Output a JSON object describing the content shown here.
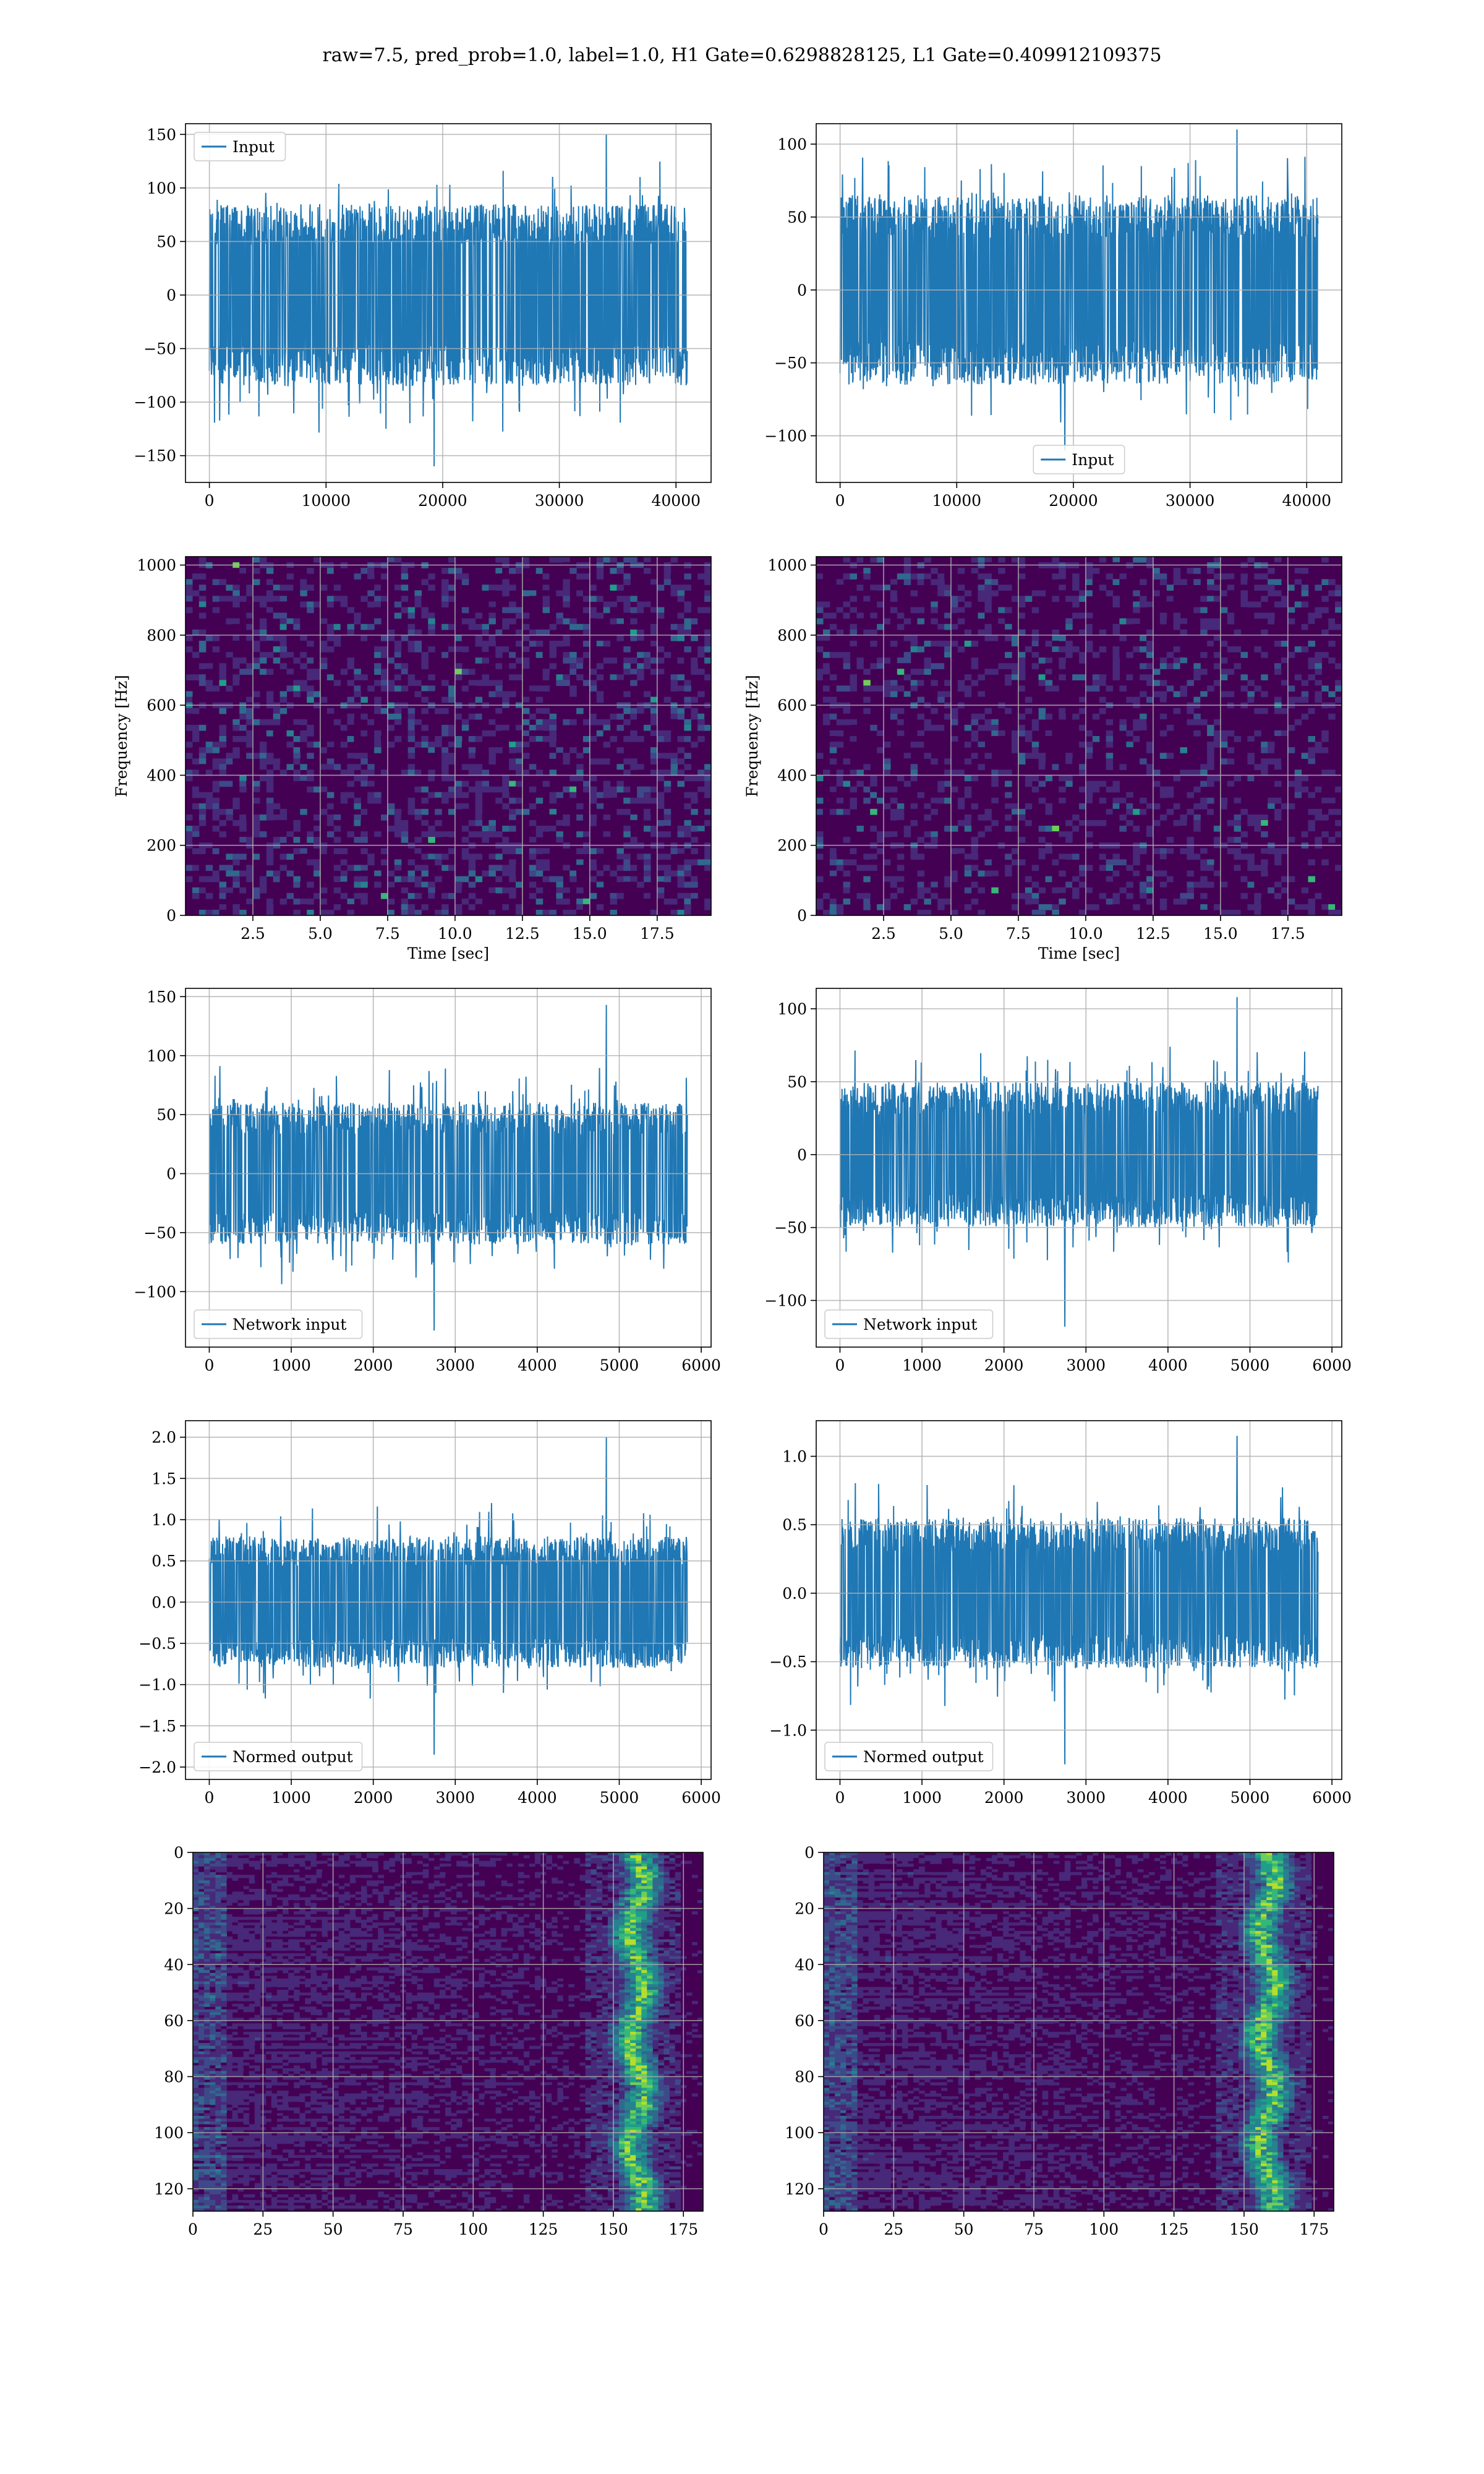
{
  "figure": {
    "suptitle": "raw=7.5, pred_prob=1.0, label=1.0, H1 Gate=0.6298828125, L1 Gate=0.409912109375"
  },
  "colors": {
    "line": "#1f77b4",
    "grid": "#b0b0b0",
    "viridis": [
      "#440154",
      "#482878",
      "#3e4989",
      "#31688e",
      "#26828e",
      "#1f9e89",
      "#35b779",
      "#6ece58",
      "#b5de2b",
      "#fde725"
    ]
  },
  "chart_data": [
    {
      "id": "h1_input",
      "type": "line",
      "series": [
        {
          "name": "Input",
          "amplitude_typical": 85,
          "peaks": [
            150,
            -160
          ]
        }
      ],
      "x": {
        "min": 0,
        "max": 40960
      },
      "xlim": [
        -2048,
        43008
      ],
      "ylim": [
        -175,
        160
      ],
      "xticks": [
        0,
        10000,
        20000,
        30000,
        40000
      ],
      "xtick_labels": [
        "0",
        "10000",
        "20000",
        "30000",
        "40000"
      ],
      "yticks": [
        -150,
        -100,
        -50,
        0,
        50,
        100,
        150
      ],
      "ytick_labels": [
        "−150",
        "−100",
        "−50",
        "0",
        "50",
        "100",
        "150"
      ],
      "legend": "upper left",
      "grid": true
    },
    {
      "id": "l1_input",
      "type": "line",
      "series": [
        {
          "name": "Input",
          "amplitude_typical": 65,
          "peaks": [
            110,
            -110
          ]
        }
      ],
      "x": {
        "min": 0,
        "max": 40960
      },
      "xlim": [
        -2048,
        43008
      ],
      "ylim": [
        -132,
        114
      ],
      "xticks": [
        0,
        10000,
        20000,
        30000,
        40000
      ],
      "xtick_labels": [
        "0",
        "10000",
        "20000",
        "30000",
        "40000"
      ],
      "yticks": [
        -100,
        -50,
        0,
        50,
        100
      ],
      "ytick_labels": [
        "−100",
        "−50",
        "0",
        "50",
        "100"
      ],
      "legend": "lower center",
      "grid": true
    },
    {
      "id": "h1_spectrogram",
      "type": "heatmap",
      "xlabel": "Time [sec]",
      "ylabel": "Frequency [Hz]",
      "xlim": [
        0,
        19.5
      ],
      "ylim": [
        0,
        1024
      ],
      "xticks": [
        2.5,
        5.0,
        7.5,
        10.0,
        12.5,
        15.0,
        17.5
      ],
      "xtick_labels": [
        "2.5",
        "5.0",
        "7.5",
        "10.0",
        "12.5",
        "15.0",
        "17.5"
      ],
      "yticks": [
        0,
        200,
        400,
        600,
        800,
        1000
      ],
      "ytick_labels": [
        "0",
        "200",
        "400",
        "600",
        "800",
        "1000"
      ],
      "colormap": "viridis",
      "grid": true
    },
    {
      "id": "l1_spectrogram",
      "type": "heatmap",
      "xlabel": "Time [sec]",
      "ylabel": "Frequency [Hz]",
      "xlim": [
        0,
        19.5
      ],
      "ylim": [
        0,
        1024
      ],
      "xticks": [
        2.5,
        5.0,
        7.5,
        10.0,
        12.5,
        15.0,
        17.5
      ],
      "xtick_labels": [
        "2.5",
        "5.0",
        "7.5",
        "10.0",
        "12.5",
        "15.0",
        "17.5"
      ],
      "yticks": [
        0,
        200,
        400,
        600,
        800,
        1000
      ],
      "ytick_labels": [
        "0",
        "200",
        "400",
        "600",
        "800",
        "1000"
      ],
      "colormap": "viridis",
      "grid": true
    },
    {
      "id": "h1_network_input",
      "type": "line",
      "series": [
        {
          "name": "Network input",
          "amplitude_typical": 60,
          "peaks": [
            143,
            -133
          ]
        }
      ],
      "x": {
        "min": 0,
        "max": 5830
      },
      "xlim": [
        -290,
        6120
      ],
      "ylim": [
        -147,
        157
      ],
      "xticks": [
        0,
        1000,
        2000,
        3000,
        4000,
        5000,
        6000
      ],
      "xtick_labels": [
        "0",
        "1000",
        "2000",
        "3000",
        "4000",
        "5000",
        "6000"
      ],
      "yticks": [
        -100,
        -50,
        0,
        50,
        100,
        150
      ],
      "ytick_labels": [
        "−100",
        "−50",
        "0",
        "50",
        "100",
        "150"
      ],
      "legend": "lower left",
      "grid": true
    },
    {
      "id": "l1_network_input",
      "type": "line",
      "series": [
        {
          "name": "Network input",
          "amplitude_typical": 50,
          "peaks": [
            108,
            -118
          ]
        }
      ],
      "x": {
        "min": 0,
        "max": 5830
      },
      "xlim": [
        -290,
        6120
      ],
      "ylim": [
        -132,
        114
      ],
      "xticks": [
        0,
        1000,
        2000,
        3000,
        4000,
        5000,
        6000
      ],
      "xtick_labels": [
        "0",
        "1000",
        "2000",
        "3000",
        "4000",
        "5000",
        "6000"
      ],
      "yticks": [
        -100,
        -50,
        0,
        50,
        100
      ],
      "ytick_labels": [
        "−100",
        "−50",
        "0",
        "50",
        "100"
      ],
      "legend": "lower left",
      "grid": true
    },
    {
      "id": "h1_normed_output",
      "type": "line",
      "series": [
        {
          "name": "Normed output",
          "amplitude_typical": 0.8,
          "peaks": [
            2.0,
            -1.85
          ]
        }
      ],
      "x": {
        "min": 0,
        "max": 5830
      },
      "xlim": [
        -290,
        6120
      ],
      "ylim": [
        -2.15,
        2.2
      ],
      "xticks": [
        0,
        1000,
        2000,
        3000,
        4000,
        5000,
        6000
      ],
      "xtick_labels": [
        "0",
        "1000",
        "2000",
        "3000",
        "4000",
        "5000",
        "6000"
      ],
      "yticks": [
        -2.0,
        -1.5,
        -1.0,
        -0.5,
        0.0,
        0.5,
        1.0,
        1.5,
        2.0
      ],
      "ytick_labels": [
        "−2.0",
        "−1.5",
        "−1.0",
        "−0.5",
        "0.0",
        "0.5",
        "1.0",
        "1.5",
        "2.0"
      ],
      "legend": "lower left",
      "grid": true
    },
    {
      "id": "l1_normed_output",
      "type": "line",
      "series": [
        {
          "name": "Normed output",
          "amplitude_typical": 0.55,
          "peaks": [
            1.15,
            -1.25
          ]
        }
      ],
      "x": {
        "min": 0,
        "max": 5830
      },
      "xlim": [
        -290,
        6120
      ],
      "ylim": [
        -1.36,
        1.26
      ],
      "xticks": [
        0,
        1000,
        2000,
        3000,
        4000,
        5000,
        6000
      ],
      "xtick_labels": [
        "0",
        "1000",
        "2000",
        "3000",
        "4000",
        "5000",
        "6000"
      ],
      "yticks": [
        -1.0,
        -0.5,
        0.0,
        0.5,
        1.0
      ],
      "ytick_labels": [
        "−1.0",
        "−0.5",
        "0.0",
        "0.5",
        "1.0"
      ],
      "legend": "lower left",
      "grid": true
    },
    {
      "id": "h1_feature_map",
      "type": "heatmap",
      "rows": 128,
      "cols": 182,
      "xlim": [
        0,
        182
      ],
      "ylim": [
        128,
        0
      ],
      "xticks": [
        0,
        25,
        50,
        75,
        100,
        125,
        150,
        175
      ],
      "xtick_labels": [
        "0",
        "25",
        "50",
        "75",
        "100",
        "125",
        "150",
        "175"
      ],
      "yticks": [
        0,
        20,
        40,
        60,
        80,
        100,
        120
      ],
      "ytick_labels": [
        "0",
        "20",
        "40",
        "60",
        "80",
        "100",
        "120"
      ],
      "colormap": "viridis",
      "grid": true
    },
    {
      "id": "l1_feature_map",
      "type": "heatmap",
      "rows": 128,
      "cols": 182,
      "xlim": [
        0,
        182
      ],
      "ylim": [
        128,
        0
      ],
      "xticks": [
        0,
        25,
        50,
        75,
        100,
        125,
        150,
        175
      ],
      "xtick_labels": [
        "0",
        "25",
        "50",
        "75",
        "100",
        "125",
        "150",
        "175"
      ],
      "yticks": [
        0,
        20,
        40,
        60,
        80,
        100,
        120
      ],
      "ytick_labels": [
        "0",
        "20",
        "40",
        "60",
        "80",
        "100",
        "120"
      ],
      "colormap": "viridis",
      "grid": true
    }
  ]
}
